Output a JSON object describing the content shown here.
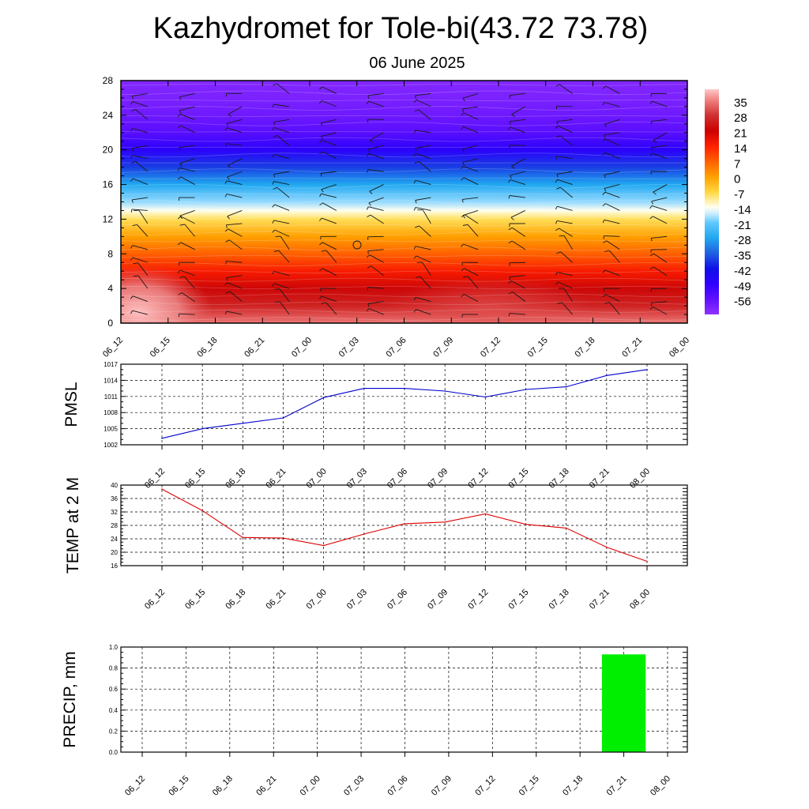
{
  "header": {
    "title": "Kazhydromet for Tole-bi(43.72 73.78)",
    "subtitle": "06 June 2025"
  },
  "time_labels": [
    "06_12",
    "06_15",
    "06_18",
    "06_21",
    "07_00",
    "07_03",
    "07_06",
    "07_09",
    "07_12",
    "07_15",
    "07_18",
    "07_21",
    "08_00"
  ],
  "colors": {
    "pmsl_line": "#0000cc",
    "temp_line": "#dd0000",
    "precip_bar": "#00ee00",
    "grid": "#000000"
  },
  "chart_data": [
    {
      "type": "heatmap",
      "name": "temperature-profile",
      "x": [
        "06_12",
        "06_15",
        "06_18",
        "06_21",
        "07_00",
        "07_03",
        "07_06",
        "07_09",
        "07_12",
        "07_15",
        "07_18",
        "07_21",
        "08_00"
      ],
      "y_ticks": [
        0,
        4,
        8,
        12,
        16,
        20,
        24,
        28
      ],
      "ylim": [
        0,
        28
      ],
      "colorbar_labels": [
        "35",
        "28",
        "21",
        "14",
        "7",
        "0",
        "-7",
        "-14",
        "-21",
        "-28",
        "-35",
        "-42",
        "-49",
        "-56"
      ],
      "colorbar_range": [
        -63,
        40
      ],
      "colorbar_stops": [
        {
          "value": 40,
          "color": "#ffc8c8"
        },
        {
          "value": 35,
          "color": "#f08080"
        },
        {
          "value": 28,
          "color": "#d03030"
        },
        {
          "value": 21,
          "color": "#cc0000"
        },
        {
          "value": 14,
          "color": "#ff2000"
        },
        {
          "value": 7,
          "color": "#ff6000"
        },
        {
          "value": 0,
          "color": "#ffa000"
        },
        {
          "value": -7,
          "color": "#ffd840"
        },
        {
          "value": -14,
          "color": "#fffff0"
        },
        {
          "value": -17,
          "color": "#c8ecff"
        },
        {
          "value": -21,
          "color": "#60c8ff"
        },
        {
          "value": -28,
          "color": "#20a8f0"
        },
        {
          "value": -35,
          "color": "#2060e0"
        },
        {
          "value": -42,
          "color": "#1010e8"
        },
        {
          "value": -49,
          "color": "#3000ff"
        },
        {
          "value": -56,
          "color": "#6010ff"
        },
        {
          "value": -63,
          "color": "#9030ff"
        }
      ],
      "profile": [
        {
          "z": 0,
          "t": 34
        },
        {
          "z": 2,
          "t": 26
        },
        {
          "z": 4,
          "t": 22
        },
        {
          "z": 6,
          "t": 15
        },
        {
          "z": 8,
          "t": 7
        },
        {
          "z": 10,
          "t": 0
        },
        {
          "z": 12,
          "t": -8
        },
        {
          "z": 13,
          "t": -14
        },
        {
          "z": 14,
          "t": -19
        },
        {
          "z": 16,
          "t": -28
        },
        {
          "z": 18,
          "t": -38
        },
        {
          "z": 20,
          "t": -48
        },
        {
          "z": 22,
          "t": -55
        },
        {
          "z": 24,
          "t": -58
        },
        {
          "z": 26,
          "t": -60
        },
        {
          "z": 28,
          "t": -61
        }
      ]
    },
    {
      "type": "line",
      "name": "pmsl",
      "ylabel": "PMSL",
      "categories": [
        "06_12",
        "06_15",
        "06_18",
        "06_21",
        "07_00",
        "07_03",
        "07_06",
        "07_09",
        "07_12",
        "07_15",
        "07_18",
        "07_21",
        "08_00"
      ],
      "values": [
        1003.2,
        1005.0,
        1006.0,
        1007.0,
        1010.8,
        1012.5,
        1012.5,
        1012.0,
        1010.9,
        1012.3,
        1012.8,
        1014.9,
        1016.0
      ],
      "ylim": [
        1002,
        1017
      ],
      "yticks": [
        1002,
        1005,
        1008,
        1011,
        1014,
        1017
      ]
    },
    {
      "type": "line",
      "name": "temp-2m",
      "ylabel": "TEMP at 2 M",
      "categories": [
        "06_12",
        "06_15",
        "06_18",
        "06_21",
        "07_00",
        "07_03",
        "07_06",
        "07_09",
        "07_12",
        "07_15",
        "07_18",
        "07_21",
        "08_00"
      ],
      "values": [
        38.8,
        32.4,
        24.4,
        24.2,
        22.0,
        25.4,
        28.5,
        29.0,
        31.4,
        28.3,
        27.2,
        21.5,
        17.3
      ],
      "ylim": [
        16,
        40
      ],
      "yticks": [
        16,
        20,
        24,
        28,
        32,
        36,
        40
      ]
    },
    {
      "type": "bar",
      "name": "precip",
      "ylabel": "PRECIP, mm",
      "categories": [
        "06_12",
        "06_15",
        "06_18",
        "06_21",
        "07_00",
        "07_03",
        "07_06",
        "07_09",
        "07_12",
        "07_15",
        "07_18",
        "07_21",
        "08_00"
      ],
      "values": [
        0,
        0,
        0,
        0,
        0,
        0,
        0,
        0,
        0,
        0,
        0,
        0.93,
        0
      ],
      "ylim": [
        0,
        1.0
      ],
      "yticks": [
        "0.0",
        "0.2",
        "0.4",
        "0.6",
        "0.8",
        "1.0"
      ]
    }
  ]
}
